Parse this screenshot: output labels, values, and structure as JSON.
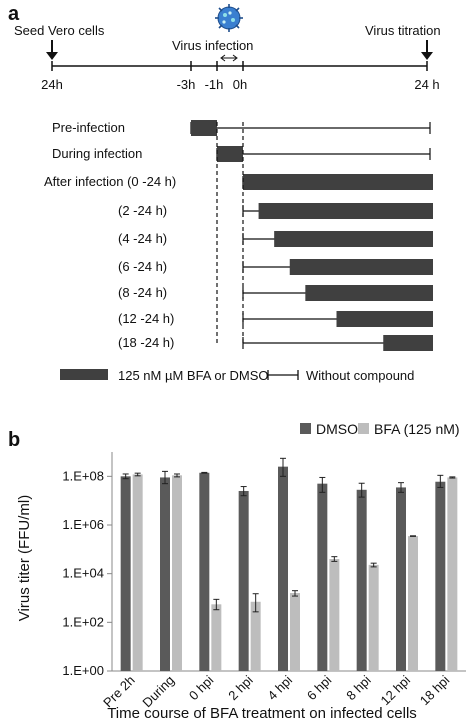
{
  "panel_a": {
    "label": "a",
    "timeline": {
      "seed_label": "Seed Vero cells",
      "infection_label": "Virus infection",
      "titration_label": "Virus titration",
      "ticks": [
        "24h",
        "-3h",
        "-1h",
        "0h",
        "24 h"
      ]
    },
    "rows": [
      {
        "label": "Pre-infection",
        "bar_from": -3,
        "bar_to": -1
      },
      {
        "label": "During infection",
        "bar_from": -1,
        "bar_to": 0
      },
      {
        "label": "After infection (0 -24 h)",
        "bar_from": 0,
        "bar_to": 24
      },
      {
        "label": "(2 -24 h)",
        "bar_from": 2,
        "bar_to": 24
      },
      {
        "label": "(4 -24 h)",
        "bar_from": 4,
        "bar_to": 24
      },
      {
        "label": "(6 -24 h)",
        "bar_from": 6,
        "bar_to": 24
      },
      {
        "label": "(8 -24 h)",
        "bar_from": 8,
        "bar_to": 24
      },
      {
        "label": "(12 -24 h)",
        "bar_from": 12,
        "bar_to": 24
      },
      {
        "label": "(18 -24 h)",
        "bar_from": 18,
        "bar_to": 24
      }
    ],
    "legend": {
      "compound_label": "125 nM µM BFA or DMSO",
      "without_label": "Without compound"
    },
    "colors": {
      "bar": "#404040",
      "line": "#111111"
    }
  },
  "chart_data": {
    "panel_label": "b",
    "type": "bar",
    "categories": [
      "Pre 2h",
      "During",
      "0 hpi",
      "2 hpi",
      "4 hpi",
      "6 hpi",
      "8 hpi",
      "12 hpi",
      "18 hpi"
    ],
    "series": [
      {
        "name": "DMSO",
        "color": "#5a5a5a",
        "values": [
          100000000.0,
          90000000.0,
          140000000.0,
          25000000.0,
          250000000.0,
          50000000.0,
          28000000.0,
          35000000.0,
          60000000.0
        ],
        "errors": [
          [
            80000000.0,
            125000000.0
          ],
          [
            50000000.0,
            160000000.0
          ],
          [
            135000000.0,
            145000000.0
          ],
          [
            16000000.0,
            38000000.0
          ],
          [
            100000000.0,
            550000000.0
          ],
          [
            22000000.0,
            90000000.0
          ],
          [
            14000000.0,
            52000000.0
          ],
          [
            22000000.0,
            55000000.0
          ],
          [
            35000000.0,
            110000000.0
          ]
        ]
      },
      {
        "name": "BFA (125 nM)",
        "color": "#bdbdbd",
        "values": [
          120000000.0,
          110000000.0,
          550,
          700,
          1600,
          40000,
          23000,
          350000,
          90000000.0
        ],
        "errors": [
          [
            105000000.0,
            135000000.0
          ],
          [
            95000000.0,
            125000000.0
          ],
          [
            330,
            880
          ],
          [
            270,
            1500
          ],
          [
            1200,
            2000
          ],
          [
            32000,
            50000
          ],
          [
            19000,
            27000
          ],
          [
            340000,
            360000
          ],
          [
            85000000.0,
            95000000.0
          ]
        ]
      }
    ],
    "ylabel": "Virus titer (FFU/ml)",
    "xlabel": "Time course of BFA treatment on infected cells",
    "yscale": "log",
    "ylim": [
      1,
      1000000000.0
    ],
    "yticks": [
      "1.E+00",
      "1.E+02",
      "1.E+04",
      "1.E+06",
      "1.E+08"
    ],
    "legend_position": "top-right"
  }
}
